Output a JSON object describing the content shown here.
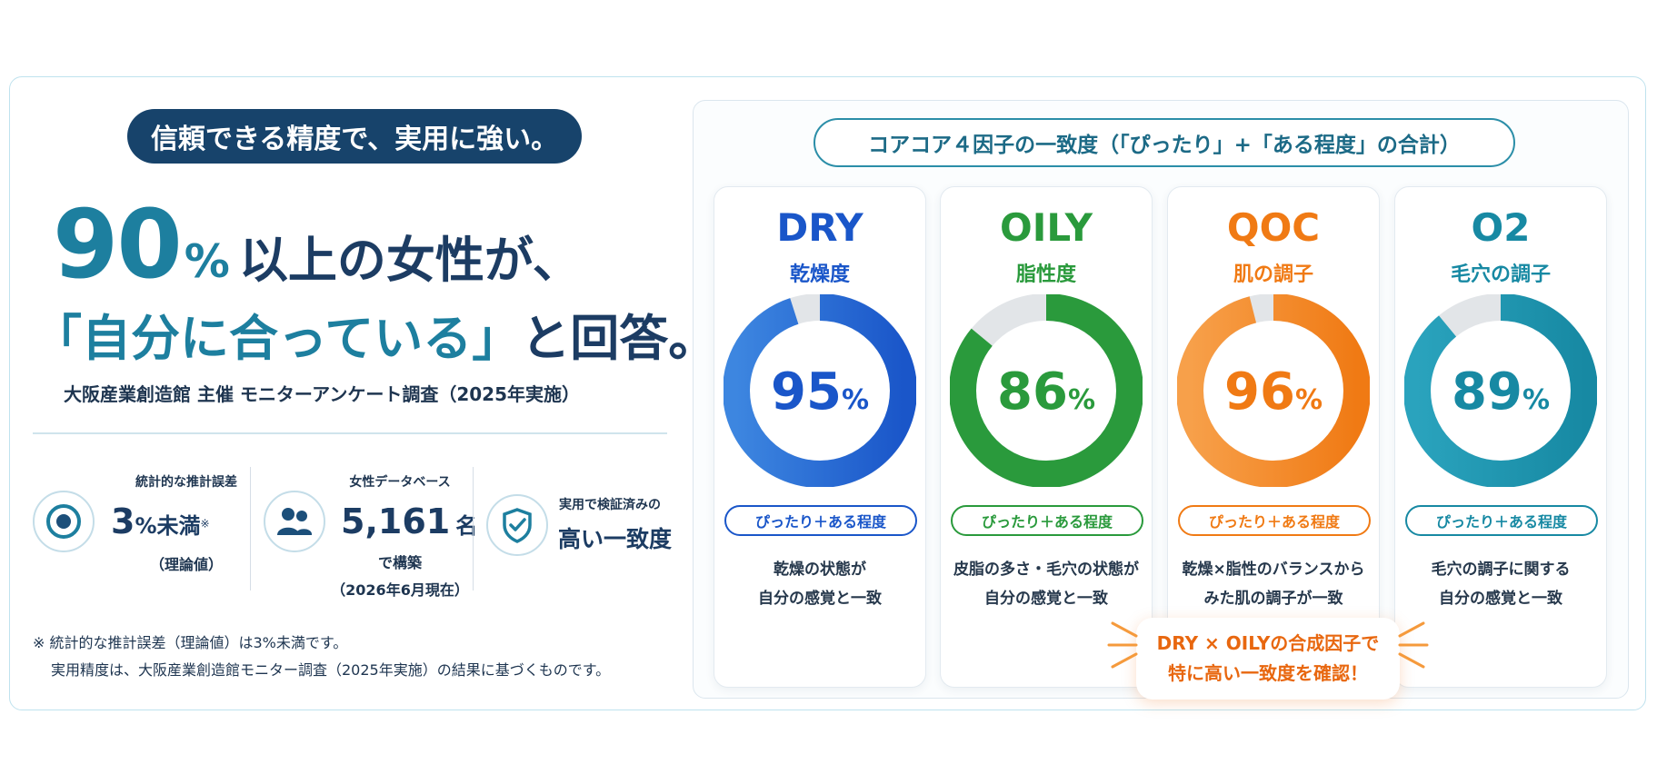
{
  "left": {
    "tagline": "信頼できる精度で、実用に強い。",
    "headline_number": "90",
    "headline_percent": "%",
    "headline_line1": "以上の女性が、",
    "headline_line2_accent": "「自分に合っている」",
    "headline_line2_rest": "と回答。",
    "source": "大阪産業創造館 主催 モニターアンケート調査（2025年実施）",
    "stats": [
      {
        "label": "統計的な推計誤差",
        "value": "3",
        "unit": "%未満",
        "mark": "※",
        "sub": "（理論値）",
        "icon": "target-icon"
      },
      {
        "label": "女性データベース",
        "value": "5,161",
        "unit": "名",
        "sub1": "で構築",
        "sub2": "（2026年6月現在）",
        "icon": "users-icon"
      },
      {
        "label": "実用で検証済みの",
        "value": "高い一致度",
        "icon": "shield-check-icon"
      }
    ],
    "note_line1": "※ 統計的な推計誤差（理論値）は3%未満です。",
    "note_line2": "実用精度は、大阪産業創造館モニター調査（2025年実施）の結果に基づくものです。"
  },
  "callout": {
    "line1": "DRY × OILYの合成因子で",
    "line2": "特に高い一致度を確認！"
  },
  "chart_data": {
    "type": "pie",
    "title": "コアコア４因子の一致度（「ぴったり」+「ある程度」の合計）",
    "series": [
      {
        "code": "DRY",
        "name": "乾燥度",
        "value": 95,
        "label": "95",
        "unit": "%",
        "pill": "ぴったり＋ある程度",
        "desc1": "乾燥の状態が",
        "desc2": "自分の感覚と一致",
        "color": "#1a56c9",
        "color_light": "#3d86e0"
      },
      {
        "code": "OILY",
        "name": "脂性度",
        "value": 86,
        "label": "86",
        "unit": "%",
        "pill": "ぴったり＋ある程度",
        "desc1": "皮脂の多さ・毛穴の状態が",
        "desc2": "自分の感覚と一致",
        "color": "#2a9a3c",
        "color_light": "#2a9a3c"
      },
      {
        "code": "QOC",
        "name": "肌の調子",
        "value": 96,
        "label": "96",
        "unit": "%",
        "pill": "ぴったり＋ある程度",
        "desc1": "乾燥×脂性のバランスから",
        "desc2": "みた肌の調子が一致",
        "color": "#f07a14",
        "color_light": "#f7a04a"
      },
      {
        "code": "O2",
        "name": "毛穴の調子",
        "value": 89,
        "label": "89",
        "unit": "%",
        "pill": "ぴったり＋ある程度",
        "desc1": "毛穴の調子に関する",
        "desc2": "自分の感覚と一致",
        "color": "#1789a3",
        "color_light": "#2aa3bd"
      }
    ]
  }
}
